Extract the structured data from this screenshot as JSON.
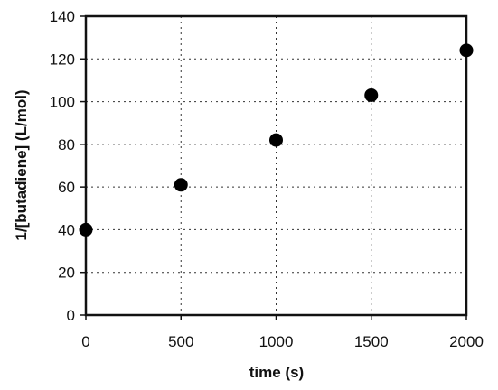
{
  "chart_data": {
    "type": "scatter",
    "title": "",
    "xlabel": "time (s)",
    "ylabel": "1/[butadiene] (L/mol)",
    "xlim": [
      0,
      2000
    ],
    "ylim": [
      0,
      140
    ],
    "x_ticks": [
      0,
      500,
      1000,
      1500,
      2000
    ],
    "y_ticks": [
      0,
      20,
      40,
      60,
      80,
      100,
      120,
      140
    ],
    "grid": "dashed",
    "series": [
      {
        "x": [
          0,
          500,
          1000,
          1500,
          2000
        ],
        "y": [
          40,
          61,
          82,
          103,
          124
        ]
      }
    ]
  }
}
